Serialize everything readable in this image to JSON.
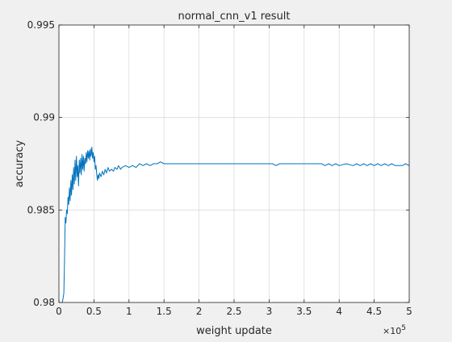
{
  "chart_data": {
    "type": "line",
    "title": "normal_cnn_v1 result",
    "xlabel": "weight update",
    "ylabel": "accuracy",
    "x_exponent_label": "×10",
    "x_exponent_power": "5",
    "xlim": [
      0,
      5
    ],
    "ylim": [
      0.98,
      0.995
    ],
    "xticks": [
      0,
      0.5,
      1,
      1.5,
      2,
      2.5,
      3,
      3.5,
      4,
      4.5,
      5
    ],
    "xtick_labels": [
      "0",
      "0.5",
      "1",
      "1.5",
      "2",
      "2.5",
      "3",
      "3.5",
      "4",
      "4.5",
      "5"
    ],
    "yticks": [
      0.98,
      0.985,
      0.99,
      0.995
    ],
    "ytick_labels": [
      "0.98",
      "0.985",
      "0.99",
      "0.995"
    ],
    "grid": true,
    "series": [
      {
        "color": "#0072bd",
        "x": [
          0.05,
          0.07,
          0.08,
          0.09,
          0.1,
          0.11,
          0.12,
          0.13,
          0.14,
          0.15,
          0.16,
          0.17,
          0.18,
          0.19,
          0.2,
          0.21,
          0.22,
          0.23,
          0.24,
          0.25,
          0.26,
          0.27,
          0.28,
          0.29,
          0.3,
          0.31,
          0.32,
          0.33,
          0.34,
          0.35,
          0.36,
          0.37,
          0.38,
          0.39,
          0.4,
          0.41,
          0.42,
          0.43,
          0.44,
          0.45,
          0.46,
          0.47,
          0.48,
          0.49,
          0.5,
          0.51,
          0.52,
          0.53,
          0.54,
          0.55,
          0.56,
          0.57,
          0.58,
          0.6,
          0.62,
          0.64,
          0.66,
          0.68,
          0.7,
          0.72,
          0.75,
          0.78,
          0.8,
          0.83,
          0.85,
          0.88,
          0.9,
          0.95,
          1.0,
          1.05,
          1.1,
          1.15,
          1.2,
          1.25,
          1.3,
          1.35,
          1.4,
          1.45,
          1.5,
          1.55,
          1.6,
          1.8,
          2.0,
          2.5,
          3.0,
          3.05,
          3.1,
          3.15,
          3.5,
          3.6,
          3.7,
          3.75,
          3.8,
          3.85,
          3.9,
          3.95,
          4.0,
          4.1,
          4.2,
          4.25,
          4.3,
          4.35,
          4.4,
          4.45,
          4.5,
          4.55,
          4.6,
          4.65,
          4.7,
          4.75,
          4.8,
          4.85,
          4.9,
          4.95,
          5.0
        ],
        "y": [
          0.98,
          0.9805,
          0.9822,
          0.9846,
          0.9843,
          0.985,
          0.9848,
          0.9857,
          0.9853,
          0.9862,
          0.9855,
          0.9866,
          0.9858,
          0.9869,
          0.9861,
          0.9873,
          0.9864,
          0.9877,
          0.9866,
          0.9879,
          0.9868,
          0.9874,
          0.9863,
          0.9877,
          0.987,
          0.9878,
          0.9869,
          0.988,
          0.9872,
          0.9879,
          0.9871,
          0.9878,
          0.9875,
          0.9881,
          0.9876,
          0.9882,
          0.9878,
          0.9882,
          0.9877,
          0.9883,
          0.9879,
          0.9884,
          0.9878,
          0.9881,
          0.9876,
          0.9879,
          0.9872,
          0.9874,
          0.9869,
          0.9866,
          0.9869,
          0.9867,
          0.987,
          0.9868,
          0.9871,
          0.9869,
          0.9872,
          0.987,
          0.9873,
          0.9871,
          0.9872,
          0.9871,
          0.9873,
          0.9872,
          0.9874,
          0.9872,
          0.9873,
          0.9874,
          0.9873,
          0.9874,
          0.9873,
          0.9875,
          0.9874,
          0.9875,
          0.9874,
          0.9875,
          0.9875,
          0.9876,
          0.9875,
          0.9875,
          0.9875,
          0.9875,
          0.9875,
          0.9875,
          0.9875,
          0.9875,
          0.9874,
          0.9875,
          0.9875,
          0.9875,
          0.9875,
          0.9875,
          0.9874,
          0.9875,
          0.9874,
          0.9875,
          0.9874,
          0.9875,
          0.9874,
          0.9875,
          0.9874,
          0.9875,
          0.9874,
          0.9875,
          0.9874,
          0.9875,
          0.9874,
          0.9875,
          0.9874,
          0.9875,
          0.9874,
          0.9874,
          0.9874,
          0.9875,
          0.9874
        ]
      }
    ]
  }
}
